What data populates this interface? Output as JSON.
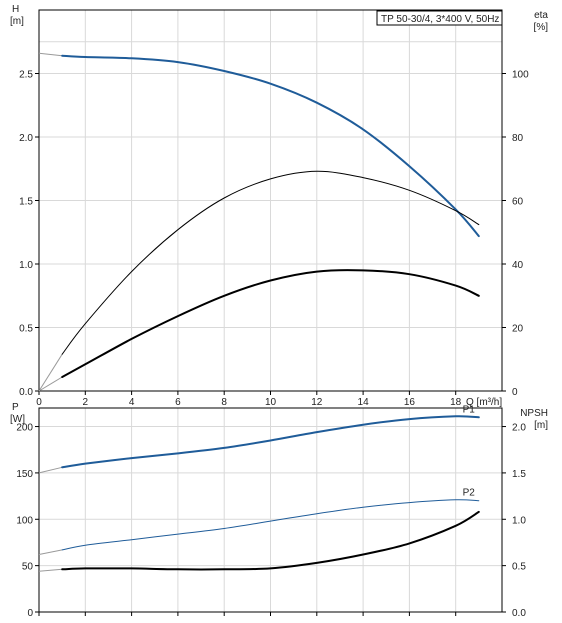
{
  "colors": {
    "blue": "#1f5c99",
    "black": "#000000",
    "ext_gray": "#9a9a9a",
    "grid": "#d9d9d9"
  },
  "chart_data": [
    {
      "panel": "top",
      "type": "line",
      "info_box": "TP 50-30/4, 3*400 V, 50Hz",
      "xlabel": "Q [m³/h]",
      "xlim": [
        0,
        20
      ],
      "xticks": [
        0,
        2,
        4,
        6,
        8,
        10,
        12,
        14,
        16,
        18
      ],
      "left_axis": {
        "label_line1": "H",
        "label_line2": "[m]",
        "lim": [
          0,
          3.0
        ],
        "ticks": [
          "0.0",
          "0.5",
          "1.0",
          "1.5",
          "2.0",
          "2.5"
        ],
        "tick_values": [
          0,
          0.5,
          1.0,
          1.5,
          2.0,
          2.5
        ]
      },
      "right_axis": {
        "label_line1": "eta",
        "label_line2": "[%]",
        "lim": [
          0,
          120
        ],
        "ticks": [
          "0",
          "20",
          "40",
          "60",
          "80",
          "100"
        ],
        "tick_values": [
          0,
          20,
          40,
          60,
          80,
          100
        ]
      },
      "grid": true,
      "series": [
        {
          "axis": "left",
          "color": "#1f5c99",
          "width": 2,
          "extension": {
            "x": [
              0,
              1
            ],
            "y": [
              2.66,
              2.64
            ]
          },
          "x": [
            1,
            2,
            4,
            6,
            8,
            10,
            12,
            14,
            16,
            18,
            19
          ],
          "y": [
            2.64,
            2.63,
            2.62,
            2.59,
            2.52,
            2.42,
            2.27,
            2.06,
            1.77,
            1.43,
            1.22
          ]
        },
        {
          "axis": "left",
          "color": "#000000",
          "width": 1,
          "extension": {
            "x": [
              0,
              1
            ],
            "y": [
              0.0,
              0.29
            ]
          },
          "x": [
            1,
            2,
            4,
            6,
            8,
            10,
            12,
            14,
            16,
            18,
            19
          ],
          "y": [
            0.29,
            0.53,
            0.94,
            1.27,
            1.52,
            1.67,
            1.73,
            1.68,
            1.58,
            1.42,
            1.31
          ]
        },
        {
          "axis": "left",
          "color": "#000000",
          "width": 2,
          "extension": {
            "x": [
              0,
              1
            ],
            "y": [
              0.0,
              0.11
            ]
          },
          "x": [
            1,
            2,
            4,
            6,
            8,
            10,
            12,
            14,
            16,
            18,
            19
          ],
          "y": [
            0.11,
            0.21,
            0.41,
            0.59,
            0.75,
            0.87,
            0.94,
            0.95,
            0.92,
            0.83,
            0.75
          ]
        }
      ]
    },
    {
      "panel": "bottom",
      "type": "line",
      "xlim": [
        0,
        20
      ],
      "left_axis": {
        "label_line1": "P",
        "label_line2": "[W]",
        "lim": [
          0,
          220
        ],
        "ticks": [
          "0",
          "50",
          "100",
          "150",
          "200"
        ],
        "tick_values": [
          0,
          50,
          100,
          150,
          200
        ]
      },
      "right_axis": {
        "label_line1": "NPSH",
        "label_line2": "[m]",
        "lim": [
          0,
          2.2
        ],
        "ticks": [
          "0.0",
          "0.5",
          "1.0",
          "1.5",
          "2.0"
        ],
        "tick_values": [
          0,
          0.5,
          1.0,
          1.5,
          2.0
        ]
      },
      "grid": true,
      "series": [
        {
          "name": "P1",
          "axis": "left",
          "color": "#1f5c99",
          "width": 2,
          "extension": {
            "x": [
              0,
              1
            ],
            "y": [
              150,
              156
            ]
          },
          "x": [
            1,
            2,
            4,
            6,
            8,
            10,
            12,
            14,
            16,
            18,
            19
          ],
          "y": [
            156,
            160,
            166,
            171,
            177,
            185,
            194,
            202,
            208,
            211,
            210
          ]
        },
        {
          "name": "P2",
          "axis": "left",
          "color": "#1f5c99",
          "width": 1,
          "extension": {
            "x": [
              0,
              1
            ],
            "y": [
              62,
              67
            ]
          },
          "x": [
            1,
            2,
            4,
            6,
            8,
            10,
            12,
            14,
            16,
            18,
            19
          ],
          "y": [
            67,
            72,
            78,
            84,
            90,
            98,
            106,
            113,
            118,
            121,
            120
          ]
        },
        {
          "axis": "right",
          "color": "#000000",
          "width": 2,
          "extension": {
            "x": [
              0,
              1
            ],
            "y": [
              0.44,
              0.46
            ]
          },
          "x": [
            1,
            2,
            4,
            6,
            8,
            10,
            12,
            14,
            16,
            18,
            19
          ],
          "y": [
            0.46,
            0.47,
            0.47,
            0.46,
            0.46,
            0.47,
            0.53,
            0.62,
            0.74,
            0.93,
            1.08
          ]
        }
      ]
    }
  ]
}
